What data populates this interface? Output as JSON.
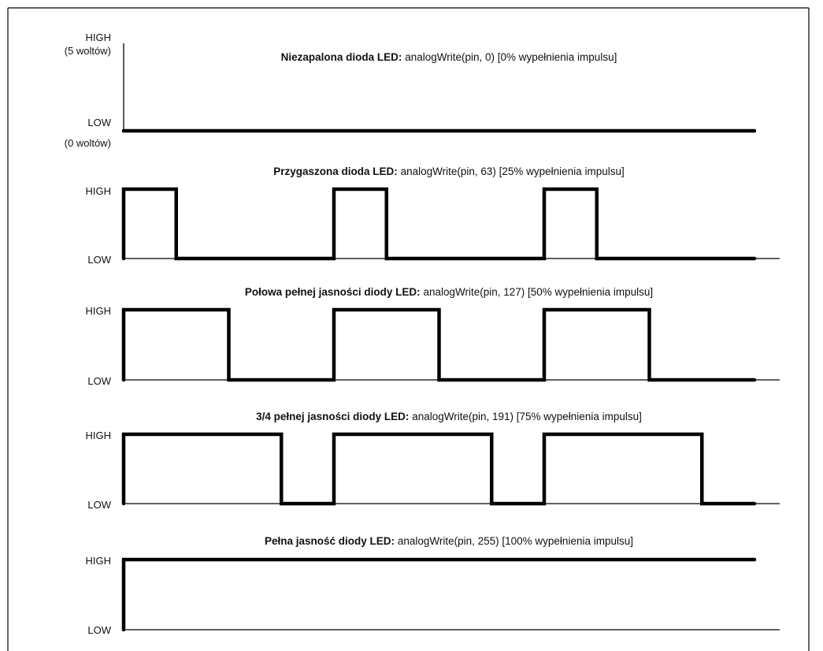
{
  "labels": {
    "high_volts": "(5 woltów)",
    "low_volts": "(0 woltów)"
  },
  "panels": [
    {
      "high_label": "HIGH",
      "low_label": "LOW",
      "title_bold": "Niezapalona dioda LED:",
      "title_rest": " analogWrite(pin, 0) [0% wypełnienia impulsu]",
      "analog_value": 0,
      "duty_percent": 0
    },
    {
      "high_label": "HIGH",
      "low_label": "LOW",
      "title_bold": "Przygaszona dioda LED:",
      "title_rest": " analogWrite(pin, 63) [25% wypełnienia impulsu]",
      "analog_value": 63,
      "duty_percent": 25
    },
    {
      "high_label": "HIGH",
      "low_label": "LOW",
      "title_bold": "Połowa pełnej jasności diody LED:",
      "title_rest": " analogWrite(pin, 127) [50% wypełnienia impulsu]",
      "analog_value": 127,
      "duty_percent": 50
    },
    {
      "high_label": "HIGH",
      "low_label": "LOW",
      "title_bold": "3/4 pełnej jasności diody LED:",
      "title_rest": " analogWrite(pin, 191) [75% wypełnienia impulsu]",
      "analog_value": 191,
      "duty_percent": 75
    },
    {
      "high_label": "HIGH",
      "low_label": "LOW",
      "title_bold": "Pełna jasność diody LED:",
      "title_rest": " analogWrite(pin, 255) [100% wypełnienia impulsu]",
      "analog_value": 255,
      "duty_percent": 100
    }
  ],
  "periods": 3
}
